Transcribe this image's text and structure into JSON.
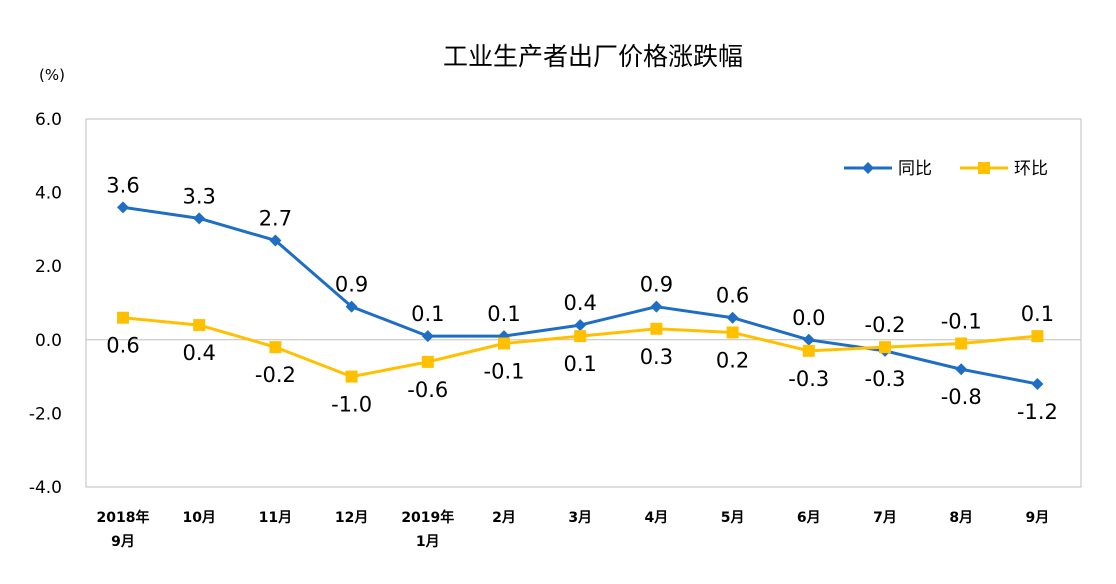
{
  "chart_data": {
    "type": "line",
    "title": "工业生产者出厂价格涨跌幅",
    "unit_label": "(%)",
    "ylim": [
      -4.0,
      6.0
    ],
    "y_ticks": [
      "6.0",
      "4.0",
      "2.0",
      "0.0",
      "-2.0",
      "-4.0"
    ],
    "categories": [
      [
        "2018年",
        "9月"
      ],
      [
        "10月"
      ],
      [
        "11月"
      ],
      [
        "12月"
      ],
      [
        "2019年",
        "1月"
      ],
      [
        "2月"
      ],
      [
        "3月"
      ],
      [
        "4月"
      ],
      [
        "5月"
      ],
      [
        "6月"
      ],
      [
        "7月"
      ],
      [
        "8月"
      ],
      [
        "9月"
      ]
    ],
    "series": [
      {
        "name": "同比",
        "color": "#1F6EC5",
        "marker": "diamond",
        "values": [
          3.6,
          3.3,
          2.7,
          0.9,
          0.1,
          0.1,
          0.4,
          0.9,
          0.6,
          0.0,
          -0.3,
          -0.8,
          -1.2
        ],
        "labels": [
          "3.6",
          "3.3",
          "2.7",
          "0.9",
          "0.1",
          "0.1",
          "0.4",
          "0.9",
          "0.6",
          "0.0",
          "-0.3",
          "-0.8",
          "-1.2"
        ]
      },
      {
        "name": "环比",
        "color": "#FFC000",
        "marker": "square",
        "values": [
          0.6,
          0.4,
          -0.2,
          -1.0,
          -0.6,
          -0.1,
          0.1,
          0.3,
          0.2,
          -0.3,
          -0.2,
          -0.1,
          0.1
        ],
        "labels": [
          "0.6",
          "0.4",
          "-0.2",
          "-1.0",
          "-0.6",
          "-0.1",
          "0.1",
          "0.3",
          "0.2",
          "-0.3",
          "-0.2",
          "-0.1",
          "0.1"
        ]
      }
    ],
    "legend_position": "top-right",
    "grid": false
  }
}
